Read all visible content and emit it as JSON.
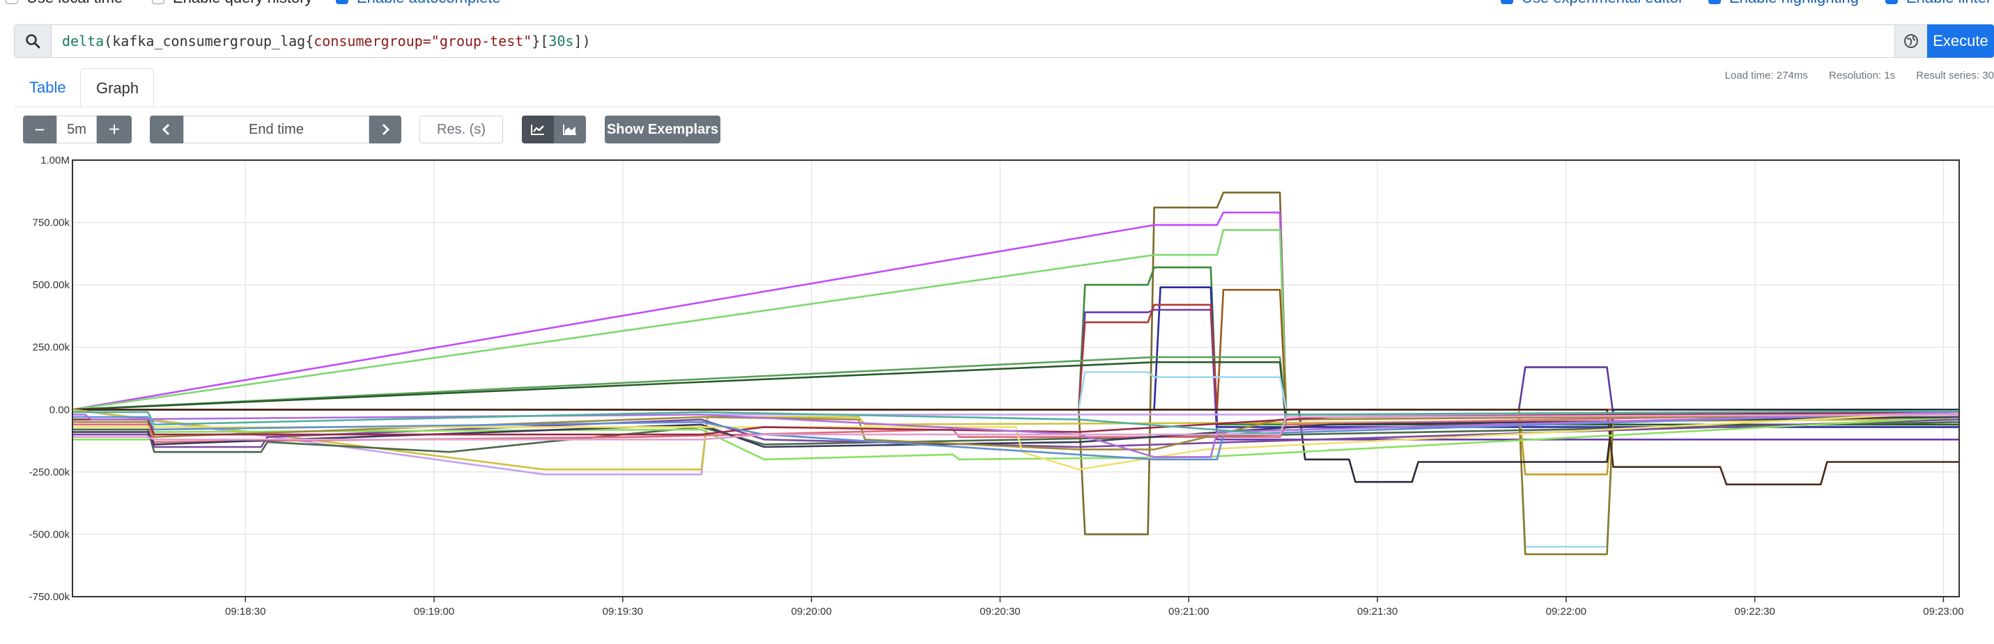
{
  "options": {
    "use_local_time": "Use local time",
    "query_history": "Enable query history",
    "autocomplete": "Enable autocomplete",
    "experimental_editor": "Use experimental editor",
    "highlighting": "Enable highlighting",
    "linter": "Enable linter"
  },
  "query": {
    "fn": "delta",
    "metric": "(kafka_consumergroup_lag{",
    "label": "consumergroup=",
    "value": "\"group-test\"",
    "range_open": "}[",
    "range": "30s",
    "range_close": "])"
  },
  "execute_label": "Execute",
  "tabs": {
    "table": "Table",
    "graph": "Graph"
  },
  "stats": {
    "load_time": "Load time: 274ms",
    "resolution": "Resolution: 1s",
    "result_series": "Result series: 30"
  },
  "controls": {
    "minus": "−",
    "range": "5m",
    "plus": "+",
    "end_time_placeholder": "End time",
    "res_placeholder": "Res. (s)",
    "exemplars": "Show Exemplars"
  },
  "chart_data": {
    "type": "line",
    "y_ticks": [
      "1.00M",
      "750.00k",
      "500.00k",
      "250.00k",
      "0.00",
      "-250.00k",
      "-500.00k",
      "-750.00k"
    ],
    "ylim": [
      -750000,
      1000000
    ],
    "x_ticks": [
      "09:18:30",
      "09:19:00",
      "09:19:30",
      "09:20:00",
      "09:20:30",
      "09:21:00",
      "09:21:30",
      "09:22:00",
      "09:22:30",
      "09:23:00"
    ],
    "x_range_sec": [
      0,
      300
    ],
    "x_tick_start_sec": 27.5,
    "x_tick_step_sec": 30,
    "grid": true,
    "series": [
      {
        "color": "#7a6a2a",
        "values": [
          [
            0,
            0
          ],
          [
            160,
            0
          ],
          [
            161,
            -500000
          ],
          [
            171,
            -500000
          ],
          [
            172,
            810000
          ],
          [
            182,
            810000
          ],
          [
            183,
            870000
          ],
          [
            192,
            870000
          ],
          [
            193,
            0
          ],
          [
            300,
            0
          ]
        ]
      },
      {
        "color": "#c04dff",
        "values": [
          [
            0,
            0
          ],
          [
            172,
            740000
          ],
          [
            182,
            740000
          ],
          [
            183,
            790000
          ],
          [
            192,
            790000
          ],
          [
            193,
            -20000
          ],
          [
            300,
            -20000
          ]
        ]
      },
      {
        "color": "#7fd86f",
        "values": [
          [
            0,
            0
          ],
          [
            172,
            620000
          ],
          [
            182,
            620000
          ],
          [
            183,
            720000
          ],
          [
            192,
            720000
          ],
          [
            193,
            0
          ],
          [
            300,
            0
          ]
        ]
      },
      {
        "color": "#3a8a3a",
        "values": [
          [
            0,
            0
          ],
          [
            160,
            0
          ],
          [
            161,
            500000
          ],
          [
            171,
            500000
          ],
          [
            172,
            570000
          ],
          [
            181,
            570000
          ],
          [
            182,
            -60000
          ],
          [
            300,
            -60000
          ]
        ]
      },
      {
        "color": "#2a2aa0",
        "values": [
          [
            0,
            0
          ],
          [
            172,
            0
          ],
          [
            173,
            490000
          ],
          [
            181,
            490000
          ],
          [
            182,
            -70000
          ],
          [
            300,
            -70000
          ]
        ]
      },
      {
        "color": "#9a5a1a",
        "values": [
          [
            0,
            0
          ],
          [
            182,
            0
          ],
          [
            183,
            480000
          ],
          [
            192,
            480000
          ],
          [
            193,
            -20000
          ],
          [
            300,
            -20000
          ]
        ]
      },
      {
        "color": "#6a3ab0",
        "values": [
          [
            0,
            0
          ],
          [
            160,
            0
          ],
          [
            161,
            390000
          ],
          [
            171,
            390000
          ],
          [
            172,
            400000
          ],
          [
            181,
            400000
          ],
          [
            182,
            -120000
          ],
          [
            300,
            -120000
          ]
        ]
      },
      {
        "color": "#b03a3a",
        "values": [
          [
            0,
            0
          ],
          [
            160,
            0
          ],
          [
            161,
            350000
          ],
          [
            171,
            350000
          ],
          [
            172,
            420000
          ],
          [
            181,
            420000
          ],
          [
            182,
            0
          ],
          [
            300,
            0
          ]
        ]
      },
      {
        "color": "#5aa05a",
        "values": [
          [
            0,
            0
          ],
          [
            172,
            210000
          ],
          [
            192,
            210000
          ],
          [
            193,
            -20000
          ],
          [
            300,
            -20000
          ]
        ]
      },
      {
        "color": "#2a5a2a",
        "values": [
          [
            0,
            0
          ],
          [
            172,
            190000
          ],
          [
            192,
            190000
          ],
          [
            193,
            -60000
          ],
          [
            300,
            -60000
          ]
        ]
      },
      {
        "color": "#5a3a9a",
        "values": [
          [
            0,
            0
          ],
          [
            230,
            0
          ],
          [
            231,
            170000
          ],
          [
            244,
            170000
          ],
          [
            245,
            -20000
          ],
          [
            300,
            -20000
          ]
        ]
      },
      {
        "color": "#a0d8f0",
        "values": [
          [
            0,
            0
          ],
          [
            160,
            0
          ],
          [
            161,
            150000
          ],
          [
            171,
            150000
          ],
          [
            172,
            130000
          ],
          [
            192,
            130000
          ],
          [
            193,
            0
          ],
          [
            230,
            0
          ],
          [
            231,
            -550000
          ],
          [
            244,
            -550000
          ],
          [
            245,
            -30000
          ],
          [
            300,
            -30000
          ]
        ]
      },
      {
        "color": "#8a7a2a",
        "values": [
          [
            0,
            0
          ],
          [
            230,
            0
          ],
          [
            231,
            -580000
          ],
          [
            244,
            -580000
          ],
          [
            245,
            -30000
          ],
          [
            300,
            -30000
          ]
        ]
      },
      {
        "color": "#c0a020",
        "values": [
          [
            0,
            0
          ],
          [
            230,
            0
          ],
          [
            231,
            -260000
          ],
          [
            244,
            -260000
          ],
          [
            245,
            -20000
          ],
          [
            300,
            -20000
          ]
        ]
      },
      {
        "color": "#2a2a3a",
        "values": [
          [
            0,
            0
          ],
          [
            195,
            0
          ],
          [
            196,
            -200000
          ],
          [
            203,
            -200000
          ],
          [
            204,
            -290000
          ],
          [
            213,
            -290000
          ],
          [
            214,
            -210000
          ],
          [
            244,
            -210000
          ],
          [
            245,
            0
          ],
          [
            300,
            0
          ]
        ]
      },
      {
        "color": "#4a2a1a",
        "values": [
          [
            0,
            0
          ],
          [
            244,
            0
          ],
          [
            245,
            -230000
          ],
          [
            262,
            -230000
          ],
          [
            263,
            -300000
          ],
          [
            278,
            -300000
          ],
          [
            279,
            -210000
          ],
          [
            300,
            -210000
          ]
        ]
      },
      {
        "color": "#c8a0f0",
        "values": [
          [
            0,
            0
          ],
          [
            75,
            -260000
          ],
          [
            100,
            -260000
          ],
          [
            101,
            -20000
          ],
          [
            300,
            -20000
          ]
        ]
      },
      {
        "color": "#d0c040",
        "values": [
          [
            0,
            0
          ],
          [
            75,
            -240000
          ],
          [
            100,
            -240000
          ],
          [
            101,
            -30000
          ],
          [
            125,
            -30000
          ],
          [
            126,
            -60000
          ],
          [
            300,
            -40000
          ]
        ]
      },
      {
        "color": "#4a6a4a",
        "values": [
          [
            0,
            -80000
          ],
          [
            12,
            -80000
          ],
          [
            13,
            -170000
          ],
          [
            30,
            -170000
          ],
          [
            31,
            -130000
          ],
          [
            60,
            -170000
          ],
          [
            75,
            -130000
          ],
          [
            100,
            -70000
          ],
          [
            110,
            -140000
          ],
          [
            300,
            -50000
          ]
        ]
      },
      {
        "color": "#7a4aa0",
        "values": [
          [
            0,
            -100000
          ],
          [
            12,
            -100000
          ],
          [
            13,
            -150000
          ],
          [
            30,
            -150000
          ],
          [
            31,
            -110000
          ],
          [
            100,
            -40000
          ],
          [
            110,
            -120000
          ],
          [
            160,
            -150000
          ],
          [
            300,
            -40000
          ]
        ]
      },
      {
        "color": "#8ae060",
        "values": [
          [
            0,
            -120000
          ],
          [
            12,
            -120000
          ],
          [
            13,
            -90000
          ],
          [
            100,
            -80000
          ],
          [
            110,
            -200000
          ],
          [
            140,
            -180000
          ],
          [
            141,
            -200000
          ],
          [
            180,
            -190000
          ],
          [
            300,
            -30000
          ]
        ]
      },
      {
        "color": "#e06a7a",
        "values": [
          [
            0,
            -60000
          ],
          [
            12,
            -60000
          ],
          [
            13,
            -130000
          ],
          [
            90,
            -110000
          ],
          [
            140,
            -80000
          ],
          [
            141,
            -110000
          ],
          [
            192,
            -110000
          ],
          [
            193,
            -60000
          ],
          [
            300,
            -10000
          ]
        ]
      },
      {
        "color": "#3a3a5a",
        "values": [
          [
            0,
            -90000
          ],
          [
            12,
            -90000
          ],
          [
            13,
            -140000
          ],
          [
            100,
            -60000
          ],
          [
            110,
            -150000
          ],
          [
            160,
            -130000
          ],
          [
            200,
            -60000
          ],
          [
            300,
            -30000
          ]
        ]
      },
      {
        "color": "#a08a3a",
        "values": [
          [
            0,
            -50000
          ],
          [
            12,
            -50000
          ],
          [
            13,
            -110000
          ],
          [
            100,
            -30000
          ],
          [
            125,
            -40000
          ],
          [
            126,
            -120000
          ],
          [
            160,
            -160000
          ],
          [
            172,
            -160000
          ],
          [
            192,
            -40000
          ],
          [
            300,
            -20000
          ]
        ]
      },
      {
        "color": "#f0e070",
        "values": [
          [
            0,
            -70000
          ],
          [
            150,
            -70000
          ],
          [
            151,
            -170000
          ],
          [
            160,
            -240000
          ],
          [
            180,
            -160000
          ],
          [
            300,
            -10000
          ]
        ]
      },
      {
        "color": "#9a2a4a",
        "values": [
          [
            0,
            -40000
          ],
          [
            12,
            -40000
          ],
          [
            13,
            -100000
          ],
          [
            100,
            -100000
          ],
          [
            110,
            -70000
          ],
          [
            160,
            -90000
          ],
          [
            200,
            -30000
          ],
          [
            300,
            -10000
          ]
        ]
      },
      {
        "color": "#6090d0",
        "values": [
          [
            0,
            -30000
          ],
          [
            12,
            -30000
          ],
          [
            13,
            -80000
          ],
          [
            100,
            -50000
          ],
          [
            110,
            -100000
          ],
          [
            172,
            -200000
          ],
          [
            182,
            -200000
          ],
          [
            183,
            -100000
          ],
          [
            300,
            -10000
          ]
        ]
      },
      {
        "color": "#b070e0",
        "values": [
          [
            0,
            -20000
          ],
          [
            2,
            -20000
          ],
          [
            3,
            -40000
          ],
          [
            100,
            -20000
          ],
          [
            160,
            -100000
          ],
          [
            172,
            -190000
          ],
          [
            181,
            -190000
          ],
          [
            182,
            -90000
          ],
          [
            300,
            -10000
          ]
        ]
      },
      {
        "color": "#50b0a0",
        "values": [
          [
            0,
            -10000
          ],
          [
            12,
            -10000
          ],
          [
            13,
            -60000
          ],
          [
            100,
            -10000
          ],
          [
            160,
            -40000
          ],
          [
            192,
            -100000
          ],
          [
            193,
            -20000
          ],
          [
            300,
            -5000
          ]
        ]
      },
      {
        "color": "#e0a0d0",
        "values": [
          [
            0,
            -110000
          ],
          [
            12,
            -110000
          ],
          [
            13,
            -120000
          ],
          [
            100,
            -120000
          ],
          [
            110,
            -100000
          ],
          [
            192,
            -100000
          ],
          [
            193,
            -30000
          ],
          [
            300,
            -20000
          ]
        ]
      }
    ]
  }
}
